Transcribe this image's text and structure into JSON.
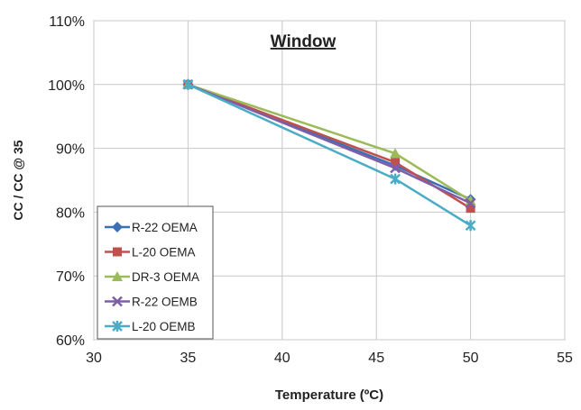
{
  "chart_data": {
    "type": "line",
    "title": "Window",
    "xlabel": "Temperature (ºC)",
    "ylabel": "CC / CC @ 35",
    "xlim": [
      30,
      55
    ],
    "ylim": [
      60,
      110
    ],
    "x_ticks": [
      "30",
      "35",
      "40",
      "45",
      "50",
      "55"
    ],
    "y_ticks": [
      "60%",
      "70%",
      "80%",
      "90%",
      "100%",
      "110%"
    ],
    "grid": true,
    "legend_position": "bottom-left",
    "series": [
      {
        "name": "R-22 OEMA",
        "color": "#3d6fb5",
        "marker": "diamond",
        "x": [
          35,
          46,
          50
        ],
        "y": [
          100,
          87.3,
          82.0
        ]
      },
      {
        "name": "L-20 OEMA",
        "color": "#c0504d",
        "marker": "square",
        "x": [
          35,
          46,
          50
        ],
        "y": [
          100,
          87.8,
          80.6
        ]
      },
      {
        "name": "DR-3 OEMA",
        "color": "#9bbb59",
        "marker": "triangle",
        "x": [
          35,
          46,
          50
        ],
        "y": [
          100,
          89.2,
          81.8
        ]
      },
      {
        "name": "R-22 OEMB",
        "color": "#7f5ea8",
        "marker": "x",
        "x": [
          35,
          46,
          50
        ],
        "y": [
          100,
          86.9,
          81.4
        ]
      },
      {
        "name": "L-20 OEMB",
        "color": "#4bacc6",
        "marker": "star",
        "x": [
          35,
          46,
          50
        ],
        "y": [
          100,
          85.2,
          77.9
        ]
      }
    ]
  }
}
